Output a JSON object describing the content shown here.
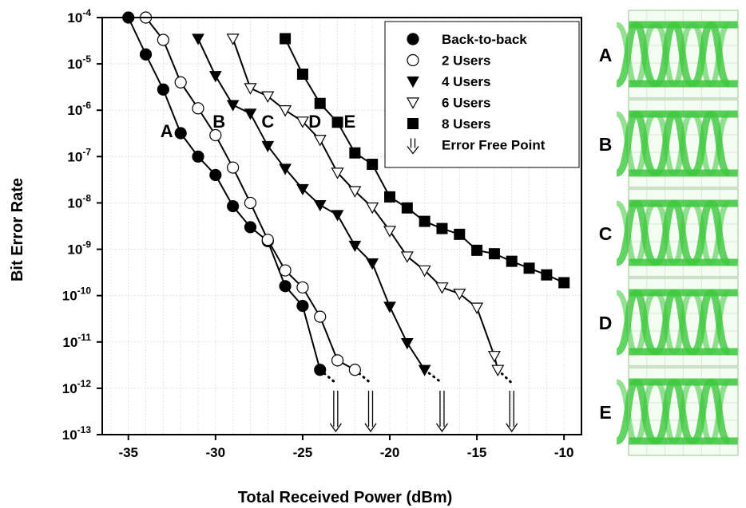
{
  "chart_data": {
    "type": "line",
    "xlabel": "Total Received Power (dBm)",
    "ylabel": "Bit Error Rate",
    "xlim": [
      -36.5,
      -9
    ],
    "x_ticks": [
      -35,
      -30,
      -25,
      -20,
      -15,
      -10
    ],
    "y_scale": "log",
    "ylim": [
      1e-13,
      0.0001
    ],
    "y_ticks": [
      {
        "base": "10",
        "exp": "-4",
        "value": 0.0001
      },
      {
        "base": "10",
        "exp": "-5",
        "value": 1e-05
      },
      {
        "base": "10",
        "exp": "-6",
        "value": 1e-06
      },
      {
        "base": "10",
        "exp": "-7",
        "value": 1e-07
      },
      {
        "base": "10",
        "exp": "-8",
        "value": 1e-08
      },
      {
        "base": "10",
        "exp": "-9",
        "value": 1e-09
      },
      {
        "base": "10",
        "exp": "-10",
        "value": 1e-10
      },
      {
        "base": "10",
        "exp": "-11",
        "value": 1e-11
      },
      {
        "base": "10",
        "exp": "-12",
        "value": 1e-12
      },
      {
        "base": "10",
        "exp": "-13",
        "value": 1e-13
      }
    ],
    "grid": true,
    "legend_position": "top-right",
    "series": [
      {
        "name": "Back-to-back",
        "marker": "filled-circle",
        "points": [
          [
            -35,
            0.0001
          ],
          [
            -34,
            1.6e-05
          ],
          [
            -33,
            2.8e-06
          ],
          [
            -32,
            3.2e-07
          ],
          [
            -31,
            1e-07
          ],
          [
            -30,
            4e-08
          ],
          [
            -29,
            8.5e-09
          ],
          [
            -28,
            3e-09
          ],
          [
            -27,
            1.5e-09
          ],
          [
            -26,
            1.6e-10
          ],
          [
            -25,
            6e-11
          ],
          [
            -24,
            2.5e-12
          ]
        ],
        "dotted_tail": [
          [
            -24,
            2.5e-12
          ],
          [
            -23.1,
            1.3e-12
          ]
        ]
      },
      {
        "name": "2 Users",
        "marker": "open-circle",
        "points": [
          [
            -34,
            0.0001
          ],
          [
            -33,
            3.3e-05
          ],
          [
            -32,
            4e-06
          ],
          [
            -31,
            1.1e-06
          ],
          [
            -30,
            2.9e-07
          ],
          [
            -29,
            5.8e-08
          ],
          [
            -28,
            1e-08
          ],
          [
            -27,
            1.6e-09
          ],
          [
            -26,
            3.5e-10
          ],
          [
            -25,
            1.5e-10
          ],
          [
            -24,
            3.5e-11
          ],
          [
            -23,
            4e-12
          ],
          [
            -22,
            2.5e-12
          ]
        ],
        "dotted_tail": [
          [
            -22,
            2.5e-12
          ],
          [
            -21.1,
            1.3e-12
          ]
        ]
      },
      {
        "name": "4 Users",
        "marker": "filled-triangle-down",
        "points": [
          [
            -31,
            3.5e-05
          ],
          [
            -30,
            5.5e-06
          ],
          [
            -29,
            1.3e-06
          ],
          [
            -28,
            8.5e-07
          ],
          [
            -27,
            1.7e-07
          ],
          [
            -26,
            5.5e-08
          ],
          [
            -25,
            2e-08
          ],
          [
            -24,
            9e-09
          ],
          [
            -23,
            5.5e-09
          ],
          [
            -22,
            1.2e-09
          ],
          [
            -21,
            5e-10
          ],
          [
            -20,
            5.8e-11
          ],
          [
            -19,
            9.5e-12
          ],
          [
            -18,
            2.5e-12
          ]
        ],
        "dotted_tail": [
          [
            -18,
            2.5e-12
          ],
          [
            -17,
            1.3e-12
          ]
        ]
      },
      {
        "name": "6 Users",
        "marker": "open-triangle-down",
        "points": [
          [
            -29,
            3.5e-05
          ],
          [
            -28,
            3e-06
          ],
          [
            -27,
            2e-06
          ],
          [
            -26,
            1e-06
          ],
          [
            -25,
            5.7e-07
          ],
          [
            -24,
            2.3e-07
          ],
          [
            -23,
            4.5e-08
          ],
          [
            -22,
            1.8e-08
          ],
          [
            -21,
            8e-09
          ],
          [
            -20,
            2.5e-09
          ],
          [
            -19,
            7e-10
          ],
          [
            -18,
            3.5e-10
          ],
          [
            -17,
            1.5e-10
          ],
          [
            -16,
            1.1e-10
          ],
          [
            -15,
            5.5e-11
          ],
          [
            -14,
            5e-12
          ],
          [
            -13.8,
            2.5e-12
          ]
        ],
        "dotted_tail": [
          [
            -13.8,
            2.5e-12
          ],
          [
            -13,
            1.3e-12
          ]
        ]
      },
      {
        "name": "8 Users",
        "marker": "filled-square",
        "points": [
          [
            -26,
            3.5e-05
          ],
          [
            -25,
            6e-06
          ],
          [
            -24,
            1.4e-06
          ],
          [
            -23,
            5.5e-07
          ],
          [
            -22,
            1.2e-07
          ],
          [
            -21,
            6.8e-08
          ],
          [
            -20,
            1.35e-08
          ],
          [
            -19,
            7.8e-09
          ],
          [
            -18,
            4e-09
          ],
          [
            -17,
            2.8e-09
          ],
          [
            -16,
            2.1e-09
          ],
          [
            -15,
            9.5e-10
          ],
          [
            -14,
            8e-10
          ],
          [
            -13,
            5.5e-10
          ],
          [
            -12,
            3.9e-10
          ],
          [
            -11,
            2.8e-10
          ],
          [
            -10,
            1.9e-10
          ]
        ]
      }
    ],
    "error_free_legend": "Error Free Point",
    "error_free_points": [
      -23.1,
      -21.1,
      -17,
      -13
    ],
    "curve_letters": [
      {
        "text": "A",
        "x": -32.8,
        "y": 2.6e-07
      },
      {
        "text": "B",
        "x": -29.8,
        "y": 4.2e-07
      },
      {
        "text": "C",
        "x": -27.0,
        "y": 4.2e-07
      },
      {
        "text": "D",
        "x": -24.3,
        "y": 4.2e-07
      },
      {
        "text": "E",
        "x": -22.3,
        "y": 4.2e-07
      }
    ]
  },
  "eye_diagrams": {
    "labels": [
      "A",
      "B",
      "C",
      "D",
      "E"
    ],
    "trace_color": "#3cc83c"
  }
}
